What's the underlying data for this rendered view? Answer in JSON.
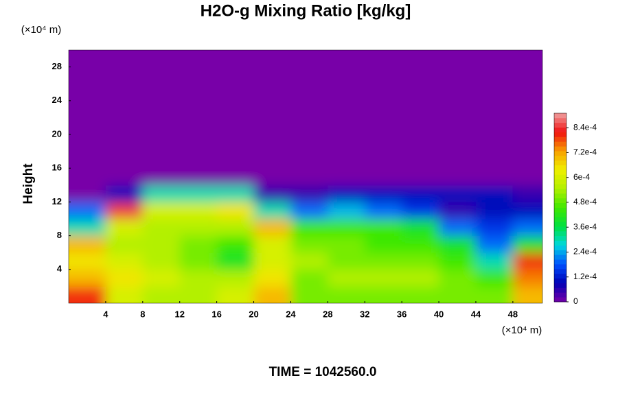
{
  "chart_data": {
    "type": "heatmap",
    "title": "H2O-g Mixing Ratio [kg/kg]",
    "y_unit": "(×10⁴ m)",
    "x_unit": "(×10⁴ m)",
    "ylabel": "Height",
    "footer": "TIME = 1042560.0",
    "xlim": [
      0,
      51.2
    ],
    "ylim": [
      0,
      30
    ],
    "xticks": [
      4,
      8,
      12,
      16,
      20,
      24,
      28,
      32,
      36,
      40,
      44,
      48
    ],
    "yticks": [
      4,
      8,
      12,
      16,
      20,
      24,
      28
    ],
    "x": [
      2,
      6,
      10,
      14,
      18,
      22,
      26,
      30,
      34,
      38,
      42,
      46,
      50
    ],
    "y": [
      1,
      3,
      5,
      7,
      9,
      11,
      13,
      15,
      17,
      19,
      21,
      23,
      25,
      27,
      29
    ],
    "z": [
      [
        0.0008,
        0.0006,
        0.00055,
        0.00055,
        0.0006,
        0.0007,
        0.0005,
        0.0005,
        0.0005,
        0.0005,
        0.0005,
        0.0005,
        0.0007
      ],
      [
        0.0007,
        0.00065,
        0.0006,
        0.00055,
        0.00055,
        0.00065,
        0.0005,
        0.00055,
        0.00055,
        0.00055,
        0.0005,
        0.00045,
        0.00075
      ],
      [
        0.00065,
        0.0006,
        0.00055,
        0.0005,
        0.0004,
        0.0006,
        0.00055,
        0.0005,
        0.0005,
        0.0005,
        0.00045,
        0.0003,
        0.0008
      ],
      [
        0.0007,
        0.00055,
        0.00055,
        0.0005,
        0.00045,
        0.0006,
        0.0005,
        0.0005,
        0.00045,
        0.00045,
        0.0004,
        0.0002,
        0.0004
      ],
      [
        0.0003,
        0.0006,
        0.00055,
        0.00055,
        0.00055,
        0.0007,
        0.00045,
        0.00045,
        0.00045,
        0.0004,
        0.0002,
        0.00015,
        0.0002
      ],
      [
        0.0002,
        0.00085,
        0.0006,
        0.0006,
        0.00065,
        0.0003,
        0.0002,
        0.00025,
        0.0002,
        0.00015,
        5e-05,
        0.0001,
        0.0001
      ],
      [
        0,
        0.0001,
        0.0003,
        0.0003,
        0.0003,
        5e-05,
        5e-05,
        0.0001,
        0.0001,
        0.0001,
        0.0001,
        0.0001,
        5e-05
      ],
      [
        0,
        0,
        0,
        0,
        0,
        0,
        0,
        0,
        0,
        0,
        0,
        0,
        0
      ],
      [
        0,
        0,
        0,
        0,
        0,
        0,
        0,
        0,
        0,
        0,
        0,
        0,
        0
      ],
      [
        0,
        0,
        0,
        0,
        0,
        0,
        0,
        0,
        0,
        0,
        0,
        0,
        0
      ],
      [
        0,
        0,
        0,
        0,
        0,
        0,
        0,
        0,
        0,
        0,
        0,
        0,
        0
      ],
      [
        0,
        0,
        0,
        0,
        0,
        0,
        0,
        0,
        0,
        0,
        0,
        0,
        0
      ],
      [
        0,
        0,
        0,
        0,
        0,
        0,
        0,
        0,
        0,
        0,
        0,
        0,
        0
      ],
      [
        0,
        0,
        0,
        0,
        0,
        0,
        0,
        0,
        0,
        0,
        0,
        0,
        0
      ],
      [
        0,
        0,
        0,
        0,
        0,
        0,
        0,
        0,
        0,
        0,
        0,
        0,
        0
      ]
    ],
    "colorbar_lim": [
      0,
      0.00091
    ],
    "colorbar_ticks": [
      {
        "value": 0,
        "label": "0"
      },
      {
        "value": 0.00012,
        "label": "1.2e-4"
      },
      {
        "value": 0.00024,
        "label": "2.4e-4"
      },
      {
        "value": 0.00036,
        "label": "3.6e-4"
      },
      {
        "value": 0.00048,
        "label": "4.8e-4"
      },
      {
        "value": 0.0006,
        "label": "6e-4"
      },
      {
        "value": 0.00072,
        "label": "7.2e-4"
      },
      {
        "value": 0.00084,
        "label": "8.4e-4"
      }
    ],
    "colors": [
      "#7800a8",
      "#0000b4",
      "#0050ff",
      "#00d8e0",
      "#00e040",
      "#40e800",
      "#b0f000",
      "#f0f000",
      "#f8a000",
      "#f01010",
      "#f0a0a0"
    ]
  }
}
